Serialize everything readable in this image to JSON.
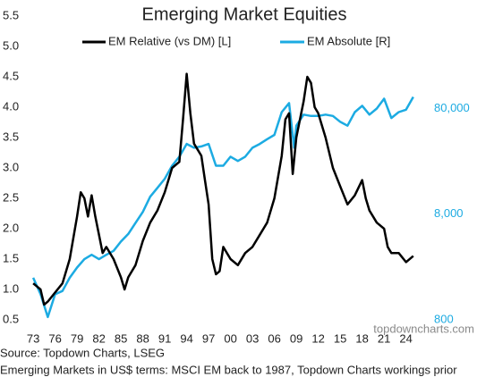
{
  "chart_data": {
    "type": "line",
    "title": "Emerging Market Equities",
    "xlim": [
      1972.5,
      2026
    ],
    "xticks": [
      {
        "value": 1973,
        "label": "73"
      },
      {
        "value": 1976,
        "label": "76"
      },
      {
        "value": 1979,
        "label": "79"
      },
      {
        "value": 1982,
        "label": "82"
      },
      {
        "value": 1985,
        "label": "85"
      },
      {
        "value": 1988,
        "label": "88"
      },
      {
        "value": 1991,
        "label": "91"
      },
      {
        "value": 1994,
        "label": "94"
      },
      {
        "value": 1997,
        "label": "97"
      },
      {
        "value": 2000,
        "label": "00"
      },
      {
        "value": 2003,
        "label": "03"
      },
      {
        "value": 2006,
        "label": "06"
      },
      {
        "value": 2009,
        "label": "09"
      },
      {
        "value": 2012,
        "label": "12"
      },
      {
        "value": 2015,
        "label": "15"
      },
      {
        "value": 2018,
        "label": "18"
      },
      {
        "value": 2021,
        "label": "21"
      },
      {
        "value": 2024,
        "label": "24"
      }
    ],
    "ylim": [
      0.5,
      5.5
    ],
    "yticks": [
      0.5,
      {
        "value": 1,
        "label": "1.0"
      },
      1.5,
      {
        "value": 2,
        "label": "2.0"
      },
      2.5,
      {
        "value": 3,
        "label": "3.0"
      },
      3.5,
      {
        "value": 4,
        "label": "4.0"
      },
      4.5,
      {
        "value": 5,
        "label": "5.0"
      },
      5.5
    ],
    "y2lim": [
      800,
      600000
    ],
    "y2log": true,
    "y2ticks": [
      800,
      {
        "value": 8000,
        "label": "8,000"
      },
      {
        "value": 80000,
        "label": "80,000"
      }
    ],
    "series": [
      {
        "name": "EM Relative (vs DM) [L]",
        "color": "#000000",
        "axis": "y",
        "x": [
          1973,
          1973.5,
          1974,
          1974.5,
          1975,
          1976,
          1977,
          1978,
          1979,
          1979.5,
          1980,
          1980.5,
          1981,
          1981.5,
          1982,
          1982.5,
          1983,
          1984,
          1985,
          1985.5,
          1986,
          1987,
          1988,
          1989,
          1990,
          1991,
          1992,
          1993,
          1993.5,
          1994,
          1994.5,
          1995,
          1996,
          1996.5,
          1997,
          1997.5,
          1998,
          1998.5,
          1999,
          2000,
          2001,
          2002,
          2003,
          2004,
          2005,
          2006,
          2007,
          2007.5,
          2008,
          2008.5,
          2009,
          2010,
          2010.5,
          2011,
          2011.5,
          2012,
          2013,
          2014,
          2015,
          2016,
          2017,
          2018,
          2018.5,
          2019,
          2020,
          2021,
          2021.5,
          2022,
          2023,
          2024,
          2025
        ],
        "values": [
          1.1,
          1.05,
          1.0,
          0.75,
          0.8,
          0.95,
          1.1,
          1.5,
          2.2,
          2.6,
          2.5,
          2.2,
          2.55,
          2.2,
          1.9,
          1.6,
          1.7,
          1.5,
          1.2,
          1.0,
          1.2,
          1.4,
          1.8,
          2.1,
          2.3,
          2.6,
          3.0,
          3.1,
          3.8,
          4.55,
          3.9,
          3.4,
          3.2,
          2.8,
          2.4,
          1.5,
          1.25,
          1.3,
          1.7,
          1.5,
          1.4,
          1.6,
          1.7,
          1.9,
          2.1,
          2.5,
          3.2,
          3.8,
          3.9,
          2.9,
          3.5,
          4.1,
          4.5,
          4.4,
          4.0,
          3.9,
          3.5,
          3.0,
          2.7,
          2.4,
          2.55,
          2.8,
          2.5,
          2.3,
          2.1,
          2.0,
          1.7,
          1.6,
          1.6,
          1.45,
          1.55
        ]
      },
      {
        "name": "EM Absolute [R]",
        "color": "#1cabe2",
        "axis": "y2",
        "x": [
          1973,
          1974,
          1975,
          1976,
          1977,
          1978,
          1979,
          1980,
          1981,
          1982,
          1983,
          1984,
          1985,
          1986,
          1987,
          1988,
          1989,
          1990,
          1991,
          1992,
          1993,
          1994,
          1995,
          1996,
          1997,
          1998,
          1999,
          2000,
          2001,
          2002,
          2003,
          2004,
          2005,
          2006,
          2007,
          2008,
          2008.7,
          2009,
          2010,
          2011,
          2012,
          2013,
          2014,
          2015,
          2016,
          2017,
          2018,
          2019,
          2020,
          2021,
          2022,
          2023,
          2024,
          2025
        ],
        "values": [
          2000,
          1400,
          850,
          1400,
          1500,
          2000,
          2500,
          3000,
          3300,
          3000,
          3300,
          3600,
          4400,
          5200,
          6600,
          8400,
          11700,
          14200,
          17300,
          23000,
          28000,
          37000,
          34000,
          35000,
          37000,
          23000,
          23000,
          28000,
          25500,
          28000,
          34000,
          37000,
          41000,
          45000,
          74000,
          90000,
          34000,
          55000,
          70000,
          68000,
          68000,
          70000,
          68000,
          60000,
          55000,
          74000,
          85000,
          70000,
          80000,
          99000,
          65000,
          74000,
          78000,
          103000
        ]
      }
    ],
    "watermark": "topdowncharts.com",
    "source": "Source: Topdown Charts, LSEG",
    "note": "Emerging Markets in US$ terms: MSCI EM back to 1987, Topdown Charts workings prior"
  }
}
